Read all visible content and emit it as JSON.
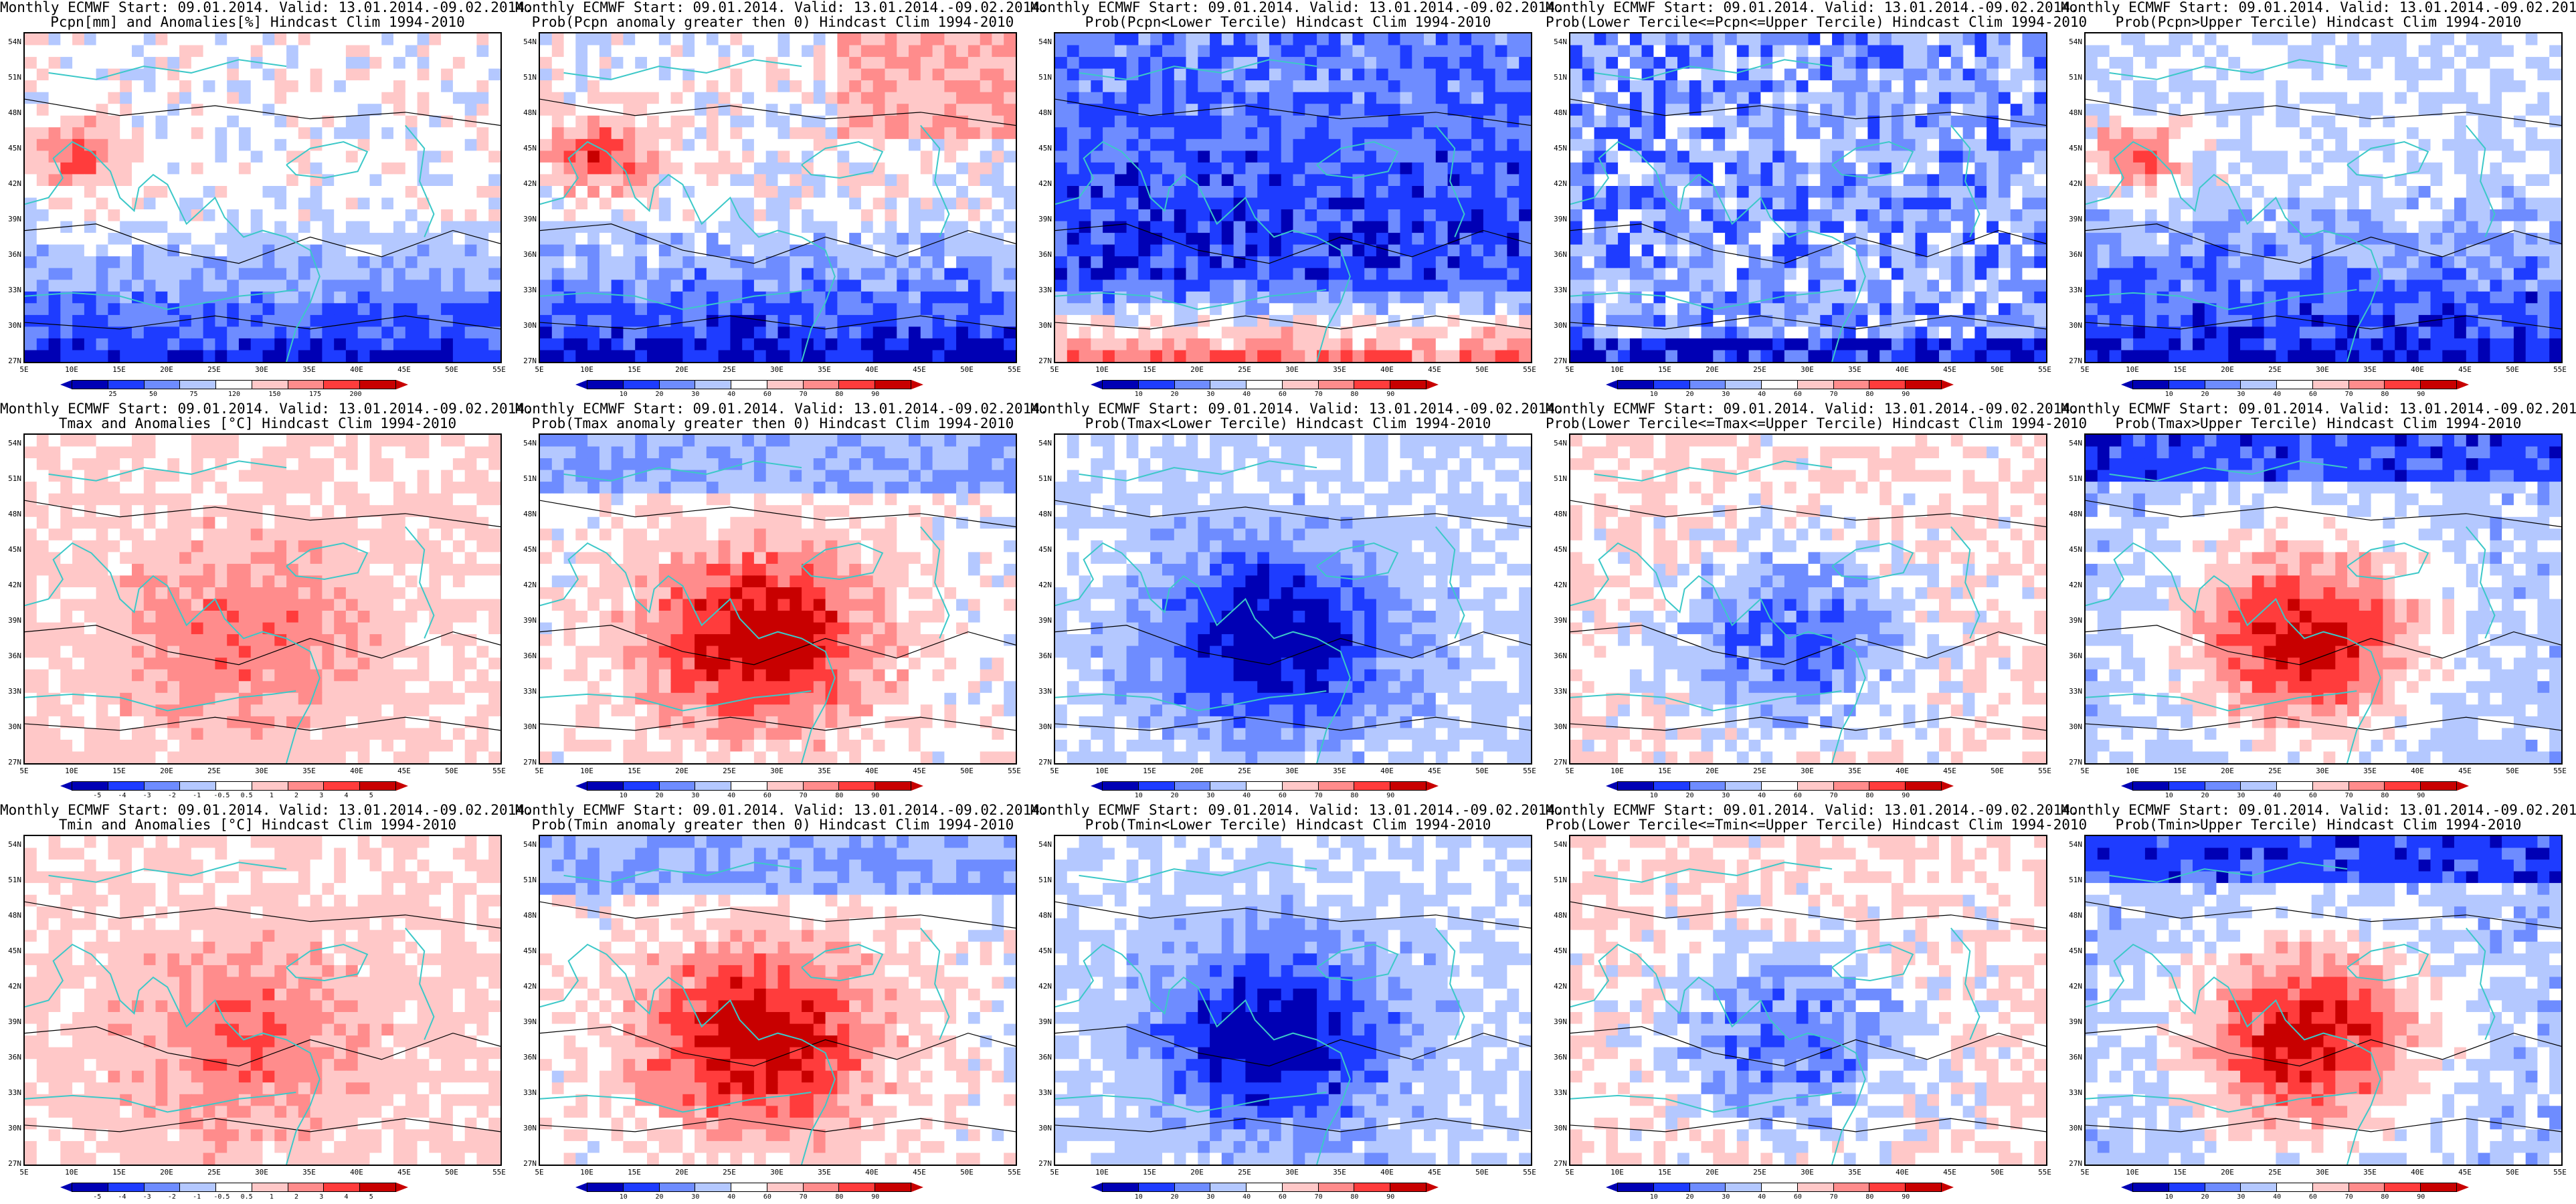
{
  "panels": [
    {
      "line1": "Monthly ECMWF Start: 09.01.2014. Valid: 13.01.2014.-09.02.2014.",
      "line2": "Pcpn[mm] and Anomalies[%] Hindcast Clim 1994-2010",
      "variable": "Pcpn",
      "kind": "anomaly",
      "cbar_ticks": [
        "25",
        "50",
        "75",
        "120",
        "150",
        "175",
        "200"
      ],
      "cbar_colors": [
        "#0000b4",
        "#1e3cff",
        "#6e8cff",
        "#b4c8ff",
        "#ffffff",
        "#ffc8c8",
        "#ff8c8c",
        "#ff3c3c",
        "#c80000"
      ]
    },
    {
      "line1": "Monthly ECMWF Start: 09.01.2014. Valid: 13.01.2014.-09.02.2014.",
      "line2": "Prob(Pcpn anomaly greater then 0) Hindcast Clim 1994-2010",
      "variable": "Pcpn",
      "kind": "prob_pos",
      "cbar_ticks": [
        "10",
        "20",
        "30",
        "40",
        "60",
        "70",
        "80",
        "90"
      ],
      "cbar_colors": [
        "#0000b4",
        "#1e3cff",
        "#6e8cff",
        "#b4c8ff",
        "#ffffff",
        "#ffc8c8",
        "#ff8c8c",
        "#ff3c3c",
        "#c80000"
      ]
    },
    {
      "line1": "Monthly ECMWF Start: 09.01.2014. Valid: 13.01.2014.-09.02.2014.",
      "line2": "Prob(Pcpn<Lower Tercile) Hindcast Clim 1994-2010",
      "variable": "Pcpn",
      "kind": "prob_lower",
      "cbar_ticks": [
        "10",
        "20",
        "30",
        "40",
        "60",
        "70",
        "80",
        "90"
      ],
      "cbar_colors": [
        "#0000b4",
        "#1e3cff",
        "#6e8cff",
        "#b4c8ff",
        "#ffffff",
        "#ffc8c8",
        "#ff8c8c",
        "#ff3c3c",
        "#c80000"
      ]
    },
    {
      "line1": "Monthly ECMWF Start: 09.01.2014. Valid: 13.01.2014.-09.02.2014.",
      "line2": "Prob(Lower Tercile<=Pcpn<=Upper Tercile) Hindcast Clim 1994-2010",
      "variable": "Pcpn",
      "kind": "prob_middle",
      "cbar_ticks": [
        "10",
        "20",
        "30",
        "40",
        "60",
        "70",
        "80",
        "90"
      ],
      "cbar_colors": [
        "#0000b4",
        "#1e3cff",
        "#6e8cff",
        "#b4c8ff",
        "#ffffff",
        "#ffc8c8",
        "#ff8c8c",
        "#ff3c3c",
        "#c80000"
      ]
    },
    {
      "line1": "Monthly ECMWF Start: 09.01.2014. Valid: 13.01.2014.-09.02.2014.",
      "line2": "Prob(Pcpn>Upper Tercile) Hindcast Clim 1994-2010",
      "variable": "Pcpn",
      "kind": "prob_upper",
      "cbar_ticks": [
        "10",
        "20",
        "30",
        "40",
        "60",
        "70",
        "80",
        "90"
      ],
      "cbar_colors": [
        "#0000b4",
        "#1e3cff",
        "#6e8cff",
        "#b4c8ff",
        "#ffffff",
        "#ffc8c8",
        "#ff8c8c",
        "#ff3c3c",
        "#c80000"
      ]
    },
    {
      "line1": "Monthly ECMWF Start: 09.01.2014. Valid: 13.01.2014.-09.02.2014.",
      "line2": "Tmax and Anomalies [°C] Hindcast Clim 1994-2010",
      "variable": "Tmax",
      "kind": "anomaly",
      "cbar_ticks": [
        "-5",
        "-4",
        "-3",
        "-2",
        "-1",
        "-0.5",
        "0.5",
        "1",
        "2",
        "3",
        "4",
        "5"
      ],
      "cbar_colors": [
        "#0000b4",
        "#1e3cff",
        "#6e8cff",
        "#b4c8ff",
        "#ffffff",
        "#ffc8c8",
        "#ff8c8c",
        "#ff3c3c",
        "#c80000"
      ]
    },
    {
      "line1": "Monthly ECMWF Start: 09.01.2014. Valid: 13.01.2014.-09.02.2014.",
      "line2": "Prob(Tmax anomaly greater then 0) Hindcast Clim 1994-2010",
      "variable": "Tmax",
      "kind": "prob_pos",
      "cbar_ticks": [
        "10",
        "20",
        "30",
        "40",
        "60",
        "70",
        "80",
        "90"
      ],
      "cbar_colors": [
        "#0000b4",
        "#1e3cff",
        "#6e8cff",
        "#b4c8ff",
        "#ffffff",
        "#ffc8c8",
        "#ff8c8c",
        "#ff3c3c",
        "#c80000"
      ]
    },
    {
      "line1": "Monthly ECMWF Start: 09.01.2014. Valid: 13.01.2014.-09.02.2014.",
      "line2": "Prob(Tmax<Lower Tercile) Hindcast Clim 1994-2010",
      "variable": "Tmax",
      "kind": "prob_lower",
      "cbar_ticks": [
        "10",
        "20",
        "30",
        "40",
        "60",
        "70",
        "80",
        "90"
      ],
      "cbar_colors": [
        "#0000b4",
        "#1e3cff",
        "#6e8cff",
        "#b4c8ff",
        "#ffffff",
        "#ffc8c8",
        "#ff8c8c",
        "#ff3c3c",
        "#c80000"
      ]
    },
    {
      "line1": "Monthly ECMWF Start: 09.01.2014. Valid: 13.01.2014.-09.02.2014.",
      "line2": "Prob(Lower Tercile<=Tmax<=Upper Tercile) Hindcast Clim 1994-2010",
      "variable": "Tmax",
      "kind": "prob_middle",
      "cbar_ticks": [
        "10",
        "20",
        "30",
        "40",
        "60",
        "70",
        "80",
        "90"
      ],
      "cbar_colors": [
        "#0000b4",
        "#1e3cff",
        "#6e8cff",
        "#b4c8ff",
        "#ffffff",
        "#ffc8c8",
        "#ff8c8c",
        "#ff3c3c",
        "#c80000"
      ]
    },
    {
      "line1": "Monthly ECMWF Start: 09.01.2014. Valid: 13.01.2014.-09.02.2014.",
      "line2": "Prob(Tmax>Upper Tercile) Hindcast Clim 1994-2010",
      "variable": "Tmax",
      "kind": "prob_upper",
      "cbar_ticks": [
        "10",
        "20",
        "30",
        "40",
        "60",
        "70",
        "80",
        "90"
      ],
      "cbar_colors": [
        "#0000b4",
        "#1e3cff",
        "#6e8cff",
        "#b4c8ff",
        "#ffffff",
        "#ffc8c8",
        "#ff8c8c",
        "#ff3c3c",
        "#c80000"
      ]
    },
    {
      "line1": "Monthly ECMWF Start: 09.01.2014. Valid: 13.01.2014.-09.02.2014.",
      "line2": "Tmin and Anomalies [°C] Hindcast Clim 1994-2010",
      "variable": "Tmin",
      "kind": "anomaly",
      "cbar_ticks": [
        "-5",
        "-4",
        "-3",
        "-2",
        "-1",
        "-0.5",
        "0.5",
        "1",
        "2",
        "3",
        "4",
        "5"
      ],
      "cbar_colors": [
        "#0000b4",
        "#1e3cff",
        "#6e8cff",
        "#b4c8ff",
        "#ffffff",
        "#ffc8c8",
        "#ff8c8c",
        "#ff3c3c",
        "#c80000"
      ]
    },
    {
      "line1": "Monthly ECMWF Start: 09.01.2014. Valid: 13.01.2014.-09.02.2014.",
      "line2": "Prob(Tmin anomaly greater then 0) Hindcast Clim 1994-2010",
      "variable": "Tmin",
      "kind": "prob_pos",
      "cbar_ticks": [
        "10",
        "20",
        "30",
        "40",
        "60",
        "70",
        "80",
        "90"
      ],
      "cbar_colors": [
        "#0000b4",
        "#1e3cff",
        "#6e8cff",
        "#b4c8ff",
        "#ffffff",
        "#ffc8c8",
        "#ff8c8c",
        "#ff3c3c",
        "#c80000"
      ]
    },
    {
      "line1": "Monthly ECMWF Start: 09.01.2014. Valid: 13.01.2014.-09.02.2014.",
      "line2": "Prob(Tmin<Lower Tercile) Hindcast Clim 1994-2010",
      "variable": "Tmin",
      "kind": "prob_lower",
      "cbar_ticks": [
        "10",
        "20",
        "30",
        "40",
        "60",
        "70",
        "80",
        "90"
      ],
      "cbar_colors": [
        "#0000b4",
        "#1e3cff",
        "#6e8cff",
        "#b4c8ff",
        "#ffffff",
        "#ffc8c8",
        "#ff8c8c",
        "#ff3c3c",
        "#c80000"
      ]
    },
    {
      "line1": "Monthly ECMWF Start: 09.01.2014. Valid: 13.01.2014.-09.02.2014.",
      "line2": "Prob(Lower Tercile<=Tmin<=Upper Tercile) Hindcast Clim 1994-2010",
      "variable": "Tmin",
      "kind": "prob_middle",
      "cbar_ticks": [
        "10",
        "20",
        "30",
        "40",
        "60",
        "70",
        "80",
        "90"
      ],
      "cbar_colors": [
        "#0000b4",
        "#1e3cff",
        "#6e8cff",
        "#b4c8ff",
        "#ffffff",
        "#ffc8c8",
        "#ff8c8c",
        "#ff3c3c",
        "#c80000"
      ]
    },
    {
      "line1": "Monthly ECMWF Start: 09.01.2014. Valid: 13.01.2014.-09.02.2014.",
      "line2": "Prob(Tmin>Upper Tercile) Hindcast Clim 1994-2010",
      "variable": "Tmin",
      "kind": "prob_upper",
      "cbar_ticks": [
        "10",
        "20",
        "30",
        "40",
        "60",
        "70",
        "80",
        "90"
      ],
      "cbar_colors": [
        "#0000b4",
        "#1e3cff",
        "#6e8cff",
        "#b4c8ff",
        "#ffffff",
        "#ffc8c8",
        "#ff8c8c",
        "#ff3c3c",
        "#c80000"
      ]
    }
  ],
  "lat_labels": [
    "54N",
    "51N",
    "48N",
    "45N",
    "42N",
    "39N",
    "36N",
    "33N",
    "30N",
    "27N"
  ],
  "lon_labels": [
    "5E",
    "10E",
    "15E",
    "20E",
    "25E",
    "30E",
    "35E",
    "40E",
    "45E",
    "50E",
    "55E"
  ],
  "colors": {
    "coast": "#3cc8c8",
    "contour": "#000000"
  }
}
